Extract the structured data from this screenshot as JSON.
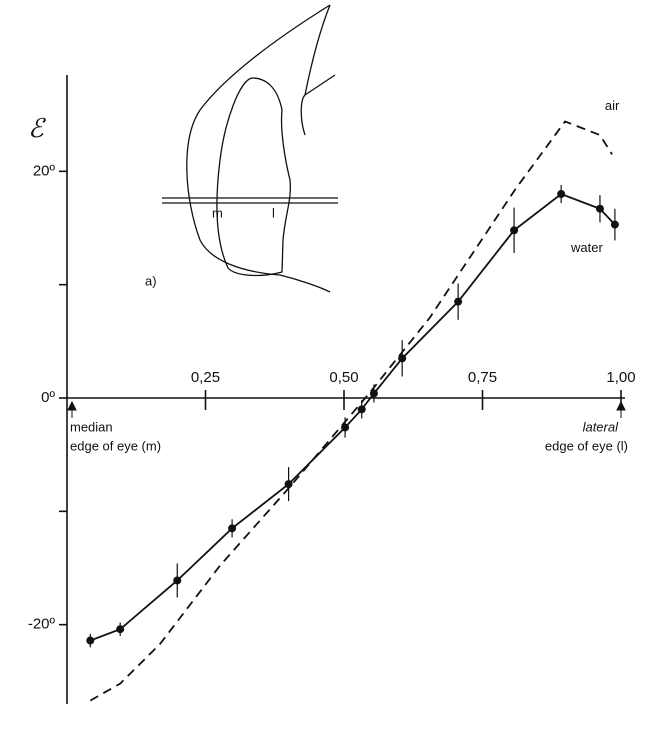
{
  "chart_data": {
    "type": "line",
    "y_label": "ℰ",
    "xlim": [
      0,
      1
    ],
    "ylim": [
      -27,
      28.5
    ],
    "xticks": [
      {
        "value": 0.25,
        "label": "0,25"
      },
      {
        "value": 0.5,
        "label": "0,50"
      },
      {
        "value": 0.75,
        "label": "0,75"
      },
      {
        "value": 1,
        "label": "1,00"
      }
    ],
    "yticks": [
      {
        "value": 20,
        "label": "20º"
      },
      {
        "value": 0,
        "label": "0º"
      },
      {
        "value": -20,
        "label": "-20º"
      }
    ],
    "yticks_minor": [
      10,
      -10
    ],
    "series": [
      {
        "name": "water",
        "color": "#111111",
        "style": "solid",
        "x": [
          0.042,
          0.096,
          0.199,
          0.298,
          0.4,
          0.502,
          0.532,
          0.554,
          0.605,
          0.706,
          0.807,
          0.892,
          0.962,
          0.989
        ],
        "values": [
          -21.4,
          -20.4,
          -16.1,
          -11.5,
          -7.6,
          -2.6,
          -1.0,
          0.4,
          3.5,
          8.5,
          14.8,
          18.0,
          16.7,
          15.3
        ],
        "errors": [
          0.6,
          0.6,
          1.5,
          0.8,
          1.5,
          0.9,
          0.8,
          0.8,
          1.6,
          1.6,
          2.0,
          0.8,
          1.2,
          1.4
        ]
      },
      {
        "name": "air",
        "color": "#111111",
        "style": "dashed",
        "x": [
          0.042,
          0.096,
          0.168,
          0.276,
          0.403,
          0.547,
          0.655,
          0.809,
          0.899,
          0.962,
          0.984
        ],
        "values": [
          -26.7,
          -25.2,
          -21.7,
          -14.8,
          -7.8,
          0.5,
          7.1,
          18.4,
          24.4,
          23.2,
          21.5
        ]
      }
    ],
    "annotations": {
      "left_edge": [
        "median",
        "edge of eye  (m)"
      ],
      "right_edge": [
        "lateral",
        "edge of eye  (l)"
      ],
      "panel": "a)",
      "inset_m": "m",
      "inset_l": "l"
    }
  }
}
